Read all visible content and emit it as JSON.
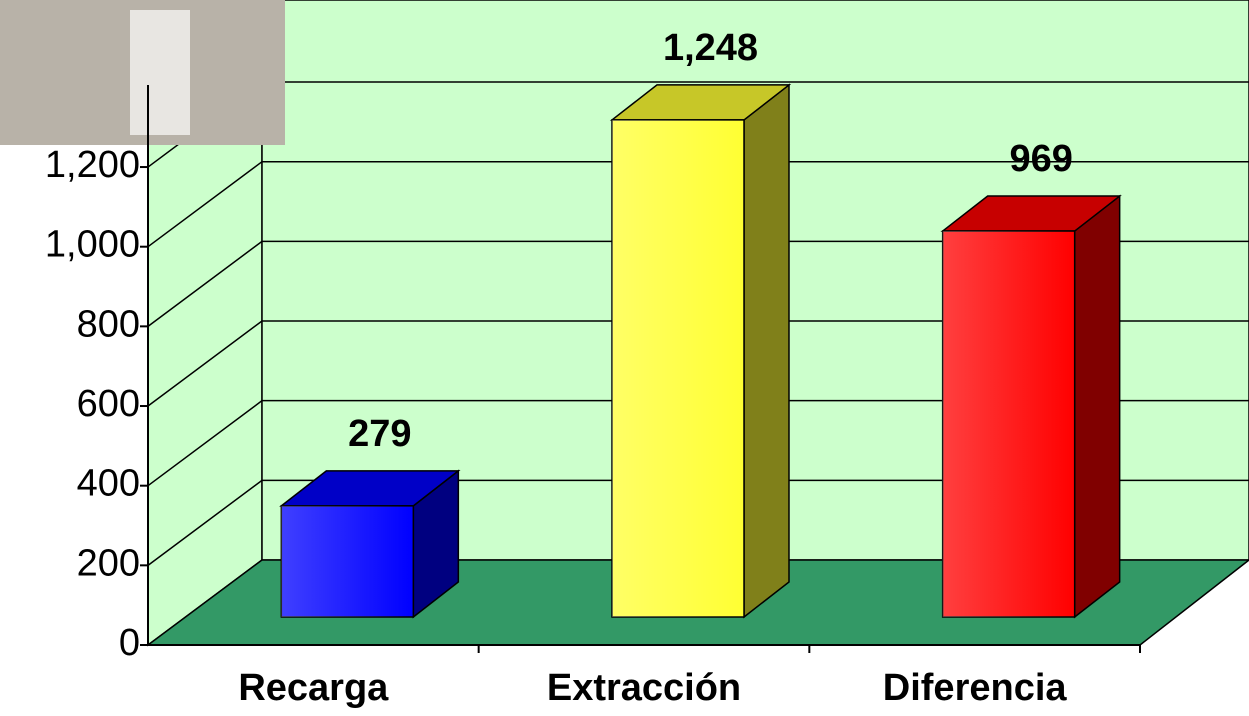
{
  "chart_data": {
    "type": "bar3d",
    "categories": [
      "Recarga",
      "Extracción",
      "Diferencia"
    ],
    "values": [
      279,
      1248,
      969
    ],
    "value_labels": [
      "279",
      "1,248",
      "969"
    ],
    "colors": [
      "#0000ff",
      "#ffff33",
      "#ff0000"
    ],
    "ylim": [
      0,
      1400
    ],
    "yticks": [
      0,
      200,
      400,
      600,
      800,
      {
        "value": 1000,
        "label": "1,000"
      },
      {
        "value": 1200,
        "label": "1,200"
      }
    ],
    "grid": true
  }
}
